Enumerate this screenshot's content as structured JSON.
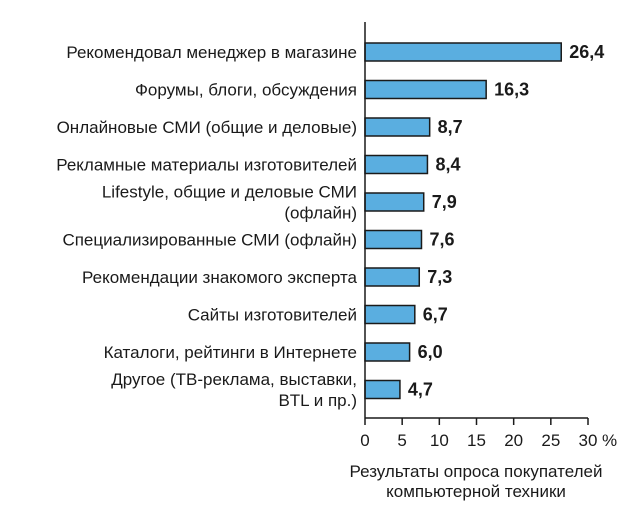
{
  "chart_data": {
    "type": "bar",
    "orientation": "horizontal",
    "categories": [
      [
        "Рекомендовал менеджер в магазине"
      ],
      [
        "Форумы, блоги, обсуждения"
      ],
      [
        "Онлайновые СМИ (общие и деловые)"
      ],
      [
        "Рекламные материалы изготовителей"
      ],
      [
        "Lifestyle, общие и деловые СМИ",
        "(офлайн)"
      ],
      [
        "Специализированные СМИ (офлайн)"
      ],
      [
        "Рекомендации знакомого эксперта"
      ],
      [
        "Сайты изготовителей"
      ],
      [
        "Каталоги, рейтинги в Интернете"
      ],
      [
        "Другое (ТВ-реклама, выставки,",
        "BTL и пр.)"
      ]
    ],
    "values": [
      26.4,
      16.3,
      8.7,
      8.4,
      7.9,
      7.6,
      7.3,
      6.7,
      6.0,
      4.7
    ],
    "value_labels": [
      "26,4",
      "16,3",
      "8,7",
      "8,4",
      "7,9",
      "7,6",
      "7,3",
      "6,7",
      "6,0",
      "4,7"
    ],
    "xlim": [
      0,
      30
    ],
    "xticks": [
      0,
      5,
      10,
      15,
      20,
      25,
      30
    ],
    "xtick_labels": [
      "0",
      "5",
      "10",
      "15",
      "20",
      "25",
      "30"
    ],
    "xunit": "%",
    "xlabel": [
      "Результаты опроса покупателей",
      "компьютерной техники"
    ],
    "grid": false,
    "legend": null,
    "bar_color": "#5aaee0"
  }
}
